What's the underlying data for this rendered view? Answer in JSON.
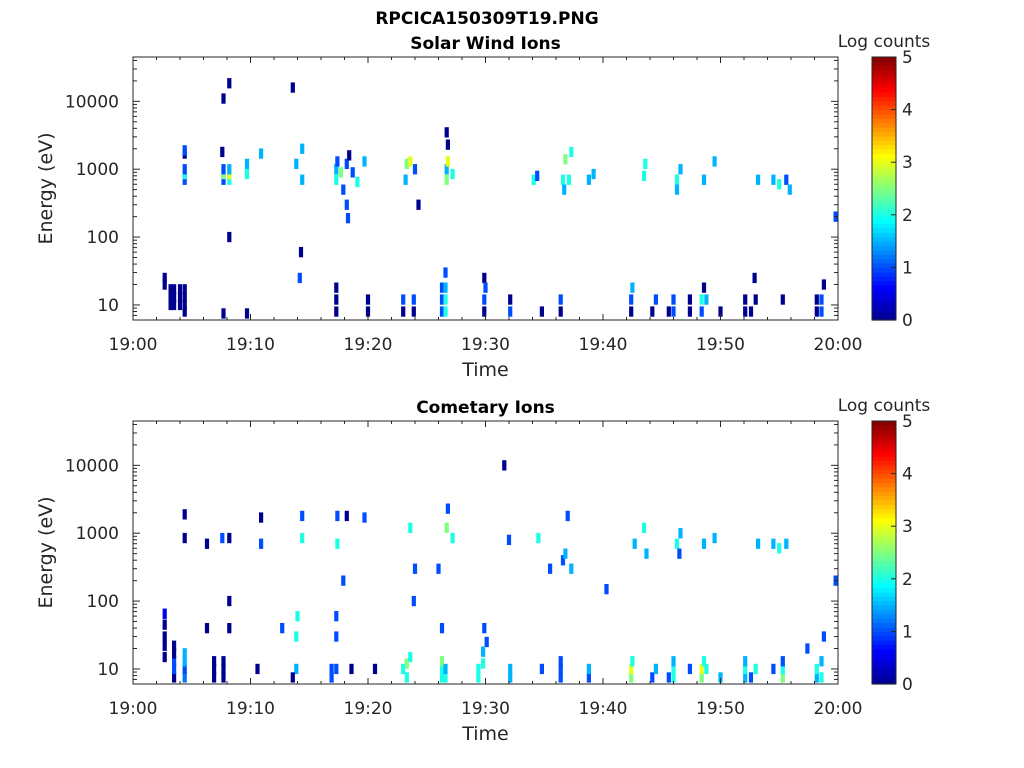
{
  "figure": {
    "title_line1": "RPCICA150309T19.PNG",
    "colors": {
      "background": "#ffffff",
      "axis": "#262626",
      "cmap": [
        "#00008f",
        "#0000ff",
        "#0080ff",
        "#00ffff",
        "#80ff80",
        "#ffff00",
        "#ff8000",
        "#ff0000",
        "#800000"
      ]
    }
  },
  "chart_data": [
    {
      "type": "heatmap",
      "title": "Solar Wind Ions",
      "xlabel": "Time",
      "ylabel": "Energy (eV)",
      "x_tick_labels": [
        "19:00",
        "19:10",
        "19:20",
        "19:30",
        "19:40",
        "19:50",
        "20:00"
      ],
      "x_ticks_min": [
        0,
        10,
        20,
        30,
        40,
        50,
        60
      ],
      "xlim_min": [
        0,
        60
      ],
      "y_scale": "log",
      "y_tick_labels": [
        "10",
        "100",
        "1000",
        "10000"
      ],
      "y_ticks": [
        10,
        100,
        1000,
        10000
      ],
      "ylim": [
        6,
        45000
      ],
      "colorbar": {
        "label": "Log counts",
        "range": [
          0,
          5
        ],
        "tick_labels": [
          "0",
          "1",
          "2",
          "3",
          "4",
          "5"
        ],
        "colormap": "jet"
      },
      "cells": [
        [
          2.7,
          20,
          0
        ],
        [
          2.7,
          25,
          0
        ],
        [
          3.2,
          10,
          0
        ],
        [
          3.2,
          13,
          0
        ],
        [
          3.2,
          17,
          0
        ],
        [
          3.5,
          10,
          0
        ],
        [
          3.5,
          13,
          0
        ],
        [
          3.5,
          17,
          0
        ],
        [
          4.0,
          10,
          0
        ],
        [
          4.0,
          13,
          0
        ],
        [
          4.0,
          17,
          0
        ],
        [
          4.4,
          8,
          0
        ],
        [
          4.4,
          10,
          0
        ],
        [
          4.4,
          13,
          0
        ],
        [
          4.4,
          17,
          0
        ],
        [
          4.4,
          700,
          1
        ],
        [
          4.4,
          850,
          2
        ],
        [
          4.4,
          1000,
          1
        ],
        [
          4.4,
          1700,
          0
        ],
        [
          4.4,
          1900,
          1
        ],
        [
          7.6,
          1800,
          0
        ],
        [
          7.7,
          700,
          1
        ],
        [
          7.7,
          850,
          2.5
        ],
        [
          7.7,
          1000,
          1
        ],
        [
          8.2,
          700,
          2
        ],
        [
          8.2,
          850,
          3
        ],
        [
          8.2,
          1000,
          1.5
        ],
        [
          8.2,
          18500,
          0
        ],
        [
          8.2,
          100,
          0
        ],
        [
          7.7,
          11000,
          0
        ],
        [
          7.7,
          7.5,
          0
        ],
        [
          9.7,
          1200,
          1.5
        ],
        [
          9.7,
          850,
          2
        ],
        [
          9.7,
          7.5,
          0
        ],
        [
          10.9,
          1700,
          1.5
        ],
        [
          13.9,
          1200,
          1.5
        ],
        [
          14.2,
          25,
          1
        ],
        [
          14.3,
          60,
          0
        ],
        [
          14.4,
          700,
          1.5
        ],
        [
          14.4,
          2000,
          1.5
        ],
        [
          13.6,
          16000,
          0
        ],
        [
          17.3,
          8,
          0
        ],
        [
          17.3,
          12,
          0
        ],
        [
          17.3,
          18,
          0
        ],
        [
          17.3,
          700,
          2
        ],
        [
          17.3,
          1000,
          1.5
        ],
        [
          17.4,
          1300,
          1
        ],
        [
          17.7,
          900,
          2.5
        ],
        [
          17.9,
          500,
          1
        ],
        [
          18.2,
          1200,
          1
        ],
        [
          18.2,
          300,
          1
        ],
        [
          18.3,
          190,
          1
        ],
        [
          18.4,
          1600,
          0
        ],
        [
          18.7,
          900,
          1
        ],
        [
          19.1,
          650,
          2
        ],
        [
          19.7,
          1300,
          1.5
        ],
        [
          20.0,
          8,
          0
        ],
        [
          20.0,
          12,
          0
        ],
        [
          23.0,
          8,
          0
        ],
        [
          23.0,
          12,
          1
        ],
        [
          23.2,
          700,
          1.5
        ],
        [
          23.3,
          1200,
          2.5
        ],
        [
          23.6,
          1300,
          3
        ],
        [
          23.9,
          8,
          0
        ],
        [
          23.9,
          12,
          1
        ],
        [
          24.0,
          1000,
          1
        ],
        [
          24.3,
          300,
          0
        ],
        [
          26.3,
          8,
          1
        ],
        [
          26.3,
          12,
          1
        ],
        [
          26.3,
          18,
          1
        ],
        [
          26.6,
          8,
          2
        ],
        [
          26.6,
          12,
          2
        ],
        [
          26.6,
          18,
          1.5
        ],
        [
          26.6,
          30,
          1
        ],
        [
          26.7,
          700,
          2.5
        ],
        [
          26.7,
          1000,
          1.5
        ],
        [
          26.8,
          1300,
          3
        ],
        [
          26.8,
          2300,
          0
        ],
        [
          26.7,
          3500,
          0
        ],
        [
          27.2,
          850,
          2
        ],
        [
          29.9,
          8,
          0
        ],
        [
          29.9,
          12,
          1
        ],
        [
          29.9,
          25,
          0
        ],
        [
          30.0,
          18,
          1
        ],
        [
          32.1,
          8,
          1
        ],
        [
          32.1,
          12,
          0
        ],
        [
          34.1,
          700,
          2
        ],
        [
          34.4,
          800,
          1
        ],
        [
          34.8,
          8,
          0
        ],
        [
          36.4,
          8,
          0
        ],
        [
          36.4,
          12,
          1
        ],
        [
          36.6,
          700,
          2
        ],
        [
          36.7,
          500,
          1.5
        ],
        [
          36.8,
          1400,
          2.5
        ],
        [
          37.1,
          700,
          2
        ],
        [
          37.3,
          1800,
          2
        ],
        [
          38.8,
          700,
          1.5
        ],
        [
          39.2,
          850,
          1.5
        ],
        [
          42.4,
          8,
          0
        ],
        [
          42.4,
          12,
          1
        ],
        [
          42.5,
          18,
          1.5
        ],
        [
          43.5,
          800,
          2
        ],
        [
          43.6,
          1200,
          2
        ],
        [
          44.2,
          8,
          0
        ],
        [
          44.5,
          12,
          1
        ],
        [
          45.6,
          8,
          0
        ],
        [
          46.0,
          8,
          1
        ],
        [
          46.0,
          12,
          1
        ],
        [
          46.3,
          700,
          2
        ],
        [
          46.3,
          500,
          1.5
        ],
        [
          46.6,
          1000,
          1.5
        ],
        [
          47.4,
          12,
          0
        ],
        [
          47.4,
          8,
          0
        ],
        [
          48.4,
          8,
          1
        ],
        [
          48.4,
          12,
          2
        ],
        [
          48.6,
          18,
          0
        ],
        [
          48.6,
          700,
          1.5
        ],
        [
          48.8,
          12,
          1.5
        ],
        [
          49.5,
          1300,
          1.5
        ],
        [
          50.0,
          8,
          0
        ],
        [
          52.1,
          8,
          0
        ],
        [
          52.1,
          12,
          0
        ],
        [
          52.6,
          8,
          0
        ],
        [
          52.9,
          25,
          0
        ],
        [
          53.0,
          12,
          0
        ],
        [
          53.2,
          700,
          1.5
        ],
        [
          54.5,
          700,
          1.5
        ],
        [
          55.0,
          600,
          2
        ],
        [
          55.3,
          12,
          0
        ],
        [
          55.6,
          700,
          1
        ],
        [
          55.9,
          500,
          1.5
        ],
        [
          58.2,
          8,
          0
        ],
        [
          58.2,
          12,
          0
        ],
        [
          58.6,
          12,
          1
        ],
        [
          58.6,
          8,
          1
        ],
        [
          58.8,
          20,
          0
        ],
        [
          59.8,
          200,
          1
        ]
      ]
    },
    {
      "type": "heatmap",
      "title": "Cometary Ions",
      "xlabel": "Time",
      "ylabel": "Energy (eV)",
      "x_tick_labels": [
        "19:00",
        "19:10",
        "19:20",
        "19:30",
        "19:40",
        "19:50",
        "20:00"
      ],
      "x_ticks_min": [
        0,
        10,
        20,
        30,
        40,
        50,
        60
      ],
      "xlim_min": [
        0,
        60
      ],
      "y_scale": "log",
      "y_tick_labels": [
        "10",
        "100",
        "1000",
        "10000"
      ],
      "y_ticks": [
        10,
        100,
        1000,
        10000
      ],
      "ylim": [
        6,
        45000
      ],
      "colorbar": {
        "label": "Log counts",
        "range": [
          0,
          5
        ],
        "tick_labels": [
          "0",
          "1",
          "2",
          "3",
          "4",
          "5"
        ],
        "colormap": "jet"
      },
      "cells": [
        [
          2.7,
          15,
          0
        ],
        [
          2.7,
          22,
          0
        ],
        [
          2.7,
          30,
          0
        ],
        [
          2.7,
          45,
          0
        ],
        [
          2.7,
          65,
          0.5
        ],
        [
          3.5,
          7.5,
          0
        ],
        [
          3.5,
          10,
          1
        ],
        [
          3.5,
          13,
          1
        ],
        [
          3.5,
          17,
          0
        ],
        [
          3.5,
          22,
          0
        ],
        [
          4.4,
          7.5,
          1.2
        ],
        [
          4.4,
          10,
          1
        ],
        [
          4.4,
          13,
          1.5
        ],
        [
          4.4,
          17,
          1.5
        ],
        [
          4.4,
          850,
          0
        ],
        [
          4.4,
          1900,
          0
        ],
        [
          6.3,
          40,
          0
        ],
        [
          6.3,
          700,
          0
        ],
        [
          6.9,
          7.5,
          0
        ],
        [
          6.9,
          10,
          0
        ],
        [
          6.9,
          13,
          0
        ],
        [
          7.7,
          7.5,
          0
        ],
        [
          7.7,
          10,
          0
        ],
        [
          7.7,
          13,
          0
        ],
        [
          7.6,
          850,
          1
        ],
        [
          8.2,
          850,
          0
        ],
        [
          8.2,
          100,
          0
        ],
        [
          8.2,
          40,
          0
        ],
        [
          10.6,
          10,
          0
        ],
        [
          10.9,
          700,
          1
        ],
        [
          10.9,
          1700,
          0
        ],
        [
          12.7,
          40,
          1
        ],
        [
          13.9,
          10,
          1.5
        ],
        [
          13.9,
          30,
          2
        ],
        [
          14.0,
          60,
          2
        ],
        [
          14.4,
          850,
          2
        ],
        [
          14.4,
          1800,
          1
        ],
        [
          13.6,
          7.5,
          0
        ],
        [
          16.9,
          10,
          1
        ],
        [
          16.9,
          7.5,
          1
        ],
        [
          17.3,
          10,
          1
        ],
        [
          17.3,
          30,
          1
        ],
        [
          17.3,
          60,
          1
        ],
        [
          17.4,
          700,
          2
        ],
        [
          17.4,
          1800,
          1
        ],
        [
          17.9,
          200,
          1
        ],
        [
          18.2,
          1800,
          0
        ],
        [
          18.6,
          10,
          0
        ],
        [
          19.7,
          1700,
          1
        ],
        [
          20.6,
          10,
          0
        ],
        [
          23.0,
          10,
          2
        ],
        [
          23.3,
          12,
          2.5
        ],
        [
          23.3,
          7.5,
          2
        ],
        [
          23.6,
          15,
          2
        ],
        [
          23.6,
          1200,
          2
        ],
        [
          23.9,
          100,
          1
        ],
        [
          24.0,
          300,
          1
        ],
        [
          26.0,
          300,
          1
        ],
        [
          26.3,
          7.5,
          2
        ],
        [
          26.3,
          10,
          2
        ],
        [
          26.3,
          13,
          2.5
        ],
        [
          26.3,
          40,
          1
        ],
        [
          26.6,
          7.5,
          2
        ],
        [
          26.6,
          10,
          1.5
        ],
        [
          26.7,
          1200,
          2.5
        ],
        [
          26.8,
          2300,
          1
        ],
        [
          27.2,
          850,
          2
        ],
        [
          29.4,
          7.5,
          2
        ],
        [
          29.4,
          10,
          2
        ],
        [
          29.8,
          12,
          2
        ],
        [
          29.8,
          18,
          1.5
        ],
        [
          29.9,
          40,
          1
        ],
        [
          30.1,
          25,
          1
        ],
        [
          31.6,
          10000,
          0
        ],
        [
          32.0,
          800,
          1
        ],
        [
          32.1,
          10,
          1.5
        ],
        [
          32.1,
          7.5,
          1.5
        ],
        [
          34.5,
          850,
          2
        ],
        [
          34.8,
          10,
          1
        ],
        [
          35.5,
          300,
          1
        ],
        [
          36.4,
          7.5,
          1
        ],
        [
          36.4,
          10,
          1
        ],
        [
          36.4,
          13,
          1
        ],
        [
          36.6,
          400,
          1
        ],
        [
          36.8,
          500,
          1.5
        ],
        [
          37.0,
          1800,
          1
        ],
        [
          37.3,
          300,
          1.5
        ],
        [
          38.8,
          7.5,
          1
        ],
        [
          38.8,
          10,
          1.5
        ],
        [
          40.3,
          150,
          1
        ],
        [
          42.4,
          7.5,
          2.5
        ],
        [
          42.4,
          10,
          3
        ],
        [
          42.5,
          13,
          2
        ],
        [
          42.7,
          700,
          1.5
        ],
        [
          43.5,
          1200,
          2
        ],
        [
          43.7,
          500,
          1.5
        ],
        [
          44.2,
          7.5,
          1
        ],
        [
          44.5,
          10,
          1.5
        ],
        [
          45.6,
          7.5,
          1
        ],
        [
          46.0,
          7.5,
          2
        ],
        [
          46.0,
          10,
          2
        ],
        [
          46.0,
          13,
          1.5
        ],
        [
          46.3,
          700,
          2
        ],
        [
          46.5,
          500,
          1
        ],
        [
          46.6,
          1000,
          1.5
        ],
        [
          47.4,
          10,
          1
        ],
        [
          48.4,
          7.5,
          2.5
        ],
        [
          48.4,
          10,
          3
        ],
        [
          48.6,
          13,
          2
        ],
        [
          48.6,
          700,
          1.5
        ],
        [
          48.8,
          10,
          2
        ],
        [
          49.5,
          850,
          1.5
        ],
        [
          50.0,
          7.5,
          1.5
        ],
        [
          52.1,
          7.5,
          1.5
        ],
        [
          52.1,
          10,
          2
        ],
        [
          52.1,
          13,
          1.5
        ],
        [
          52.6,
          7.5,
          1
        ],
        [
          53.0,
          10,
          2
        ],
        [
          53.2,
          700,
          1.5
        ],
        [
          54.5,
          10,
          1
        ],
        [
          54.5,
          700,
          1.5
        ],
        [
          55.0,
          600,
          2
        ],
        [
          55.3,
          7.5,
          2.5
        ],
        [
          55.3,
          10,
          2
        ],
        [
          55.3,
          13,
          1
        ],
        [
          55.6,
          700,
          1.5
        ],
        [
          57.4,
          20,
          1
        ],
        [
          58.2,
          7.5,
          1.5
        ],
        [
          58.2,
          10,
          2
        ],
        [
          58.6,
          13,
          1.5
        ],
        [
          58.6,
          7.5,
          2
        ],
        [
          58.8,
          30,
          1
        ],
        [
          59.8,
          200,
          1
        ]
      ]
    }
  ]
}
